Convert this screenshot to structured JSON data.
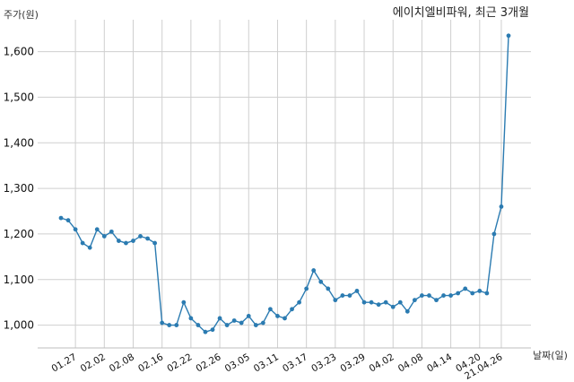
{
  "chart_data": {
    "type": "line",
    "title": "에이치엘비파워, 최근 3개월",
    "ylabel": "주가(원)",
    "xlabel": "날짜(일)",
    "ylim": [
      950,
      1670
    ],
    "yticks": [
      1000,
      1100,
      1200,
      1300,
      1400,
      1500,
      1600
    ],
    "ytick_labels": [
      "1,000",
      "1,100",
      "1,200",
      "1,300",
      "1,400",
      "1,500",
      "1,600"
    ],
    "grid": true,
    "x_ticks": [
      {
        "index": 2,
        "label": "01.27"
      },
      {
        "index": 6,
        "label": "02.02"
      },
      {
        "index": 10,
        "label": "02.08"
      },
      {
        "index": 14,
        "label": "02.16"
      },
      {
        "index": 18,
        "label": "02.22"
      },
      {
        "index": 22,
        "label": "02.26"
      },
      {
        "index": 26,
        "label": "03.05"
      },
      {
        "index": 30,
        "label": "03.11"
      },
      {
        "index": 34,
        "label": "03.17"
      },
      {
        "index": 38,
        "label": "03.23"
      },
      {
        "index": 42,
        "label": "03.29"
      },
      {
        "index": 46,
        "label": "04.02"
      },
      {
        "index": 50,
        "label": "04.08"
      },
      {
        "index": 54,
        "label": "04.14"
      },
      {
        "index": 58,
        "label": "04.20"
      },
      {
        "index": 61,
        "label": "21.04.26"
      }
    ],
    "series": [
      {
        "values": [
          1235,
          1230,
          1210,
          1180,
          1170,
          1210,
          1195,
          1205,
          1185,
          1180,
          1185,
          1195,
          1190,
          1180,
          1005,
          1000,
          1000,
          1050,
          1015,
          1000,
          985,
          990,
          1015,
          1000,
          1010,
          1005,
          1020,
          1000,
          1005,
          1035,
          1020,
          1015,
          1035,
          1050,
          1080,
          1120,
          1095,
          1080,
          1055,
          1065,
          1065,
          1075,
          1050,
          1050,
          1045,
          1050,
          1040,
          1050,
          1030,
          1055,
          1065,
          1065,
          1055,
          1065,
          1065,
          1070,
          1080,
          1070,
          1075,
          1070,
          1200,
          1260,
          1635
        ]
      }
    ]
  }
}
